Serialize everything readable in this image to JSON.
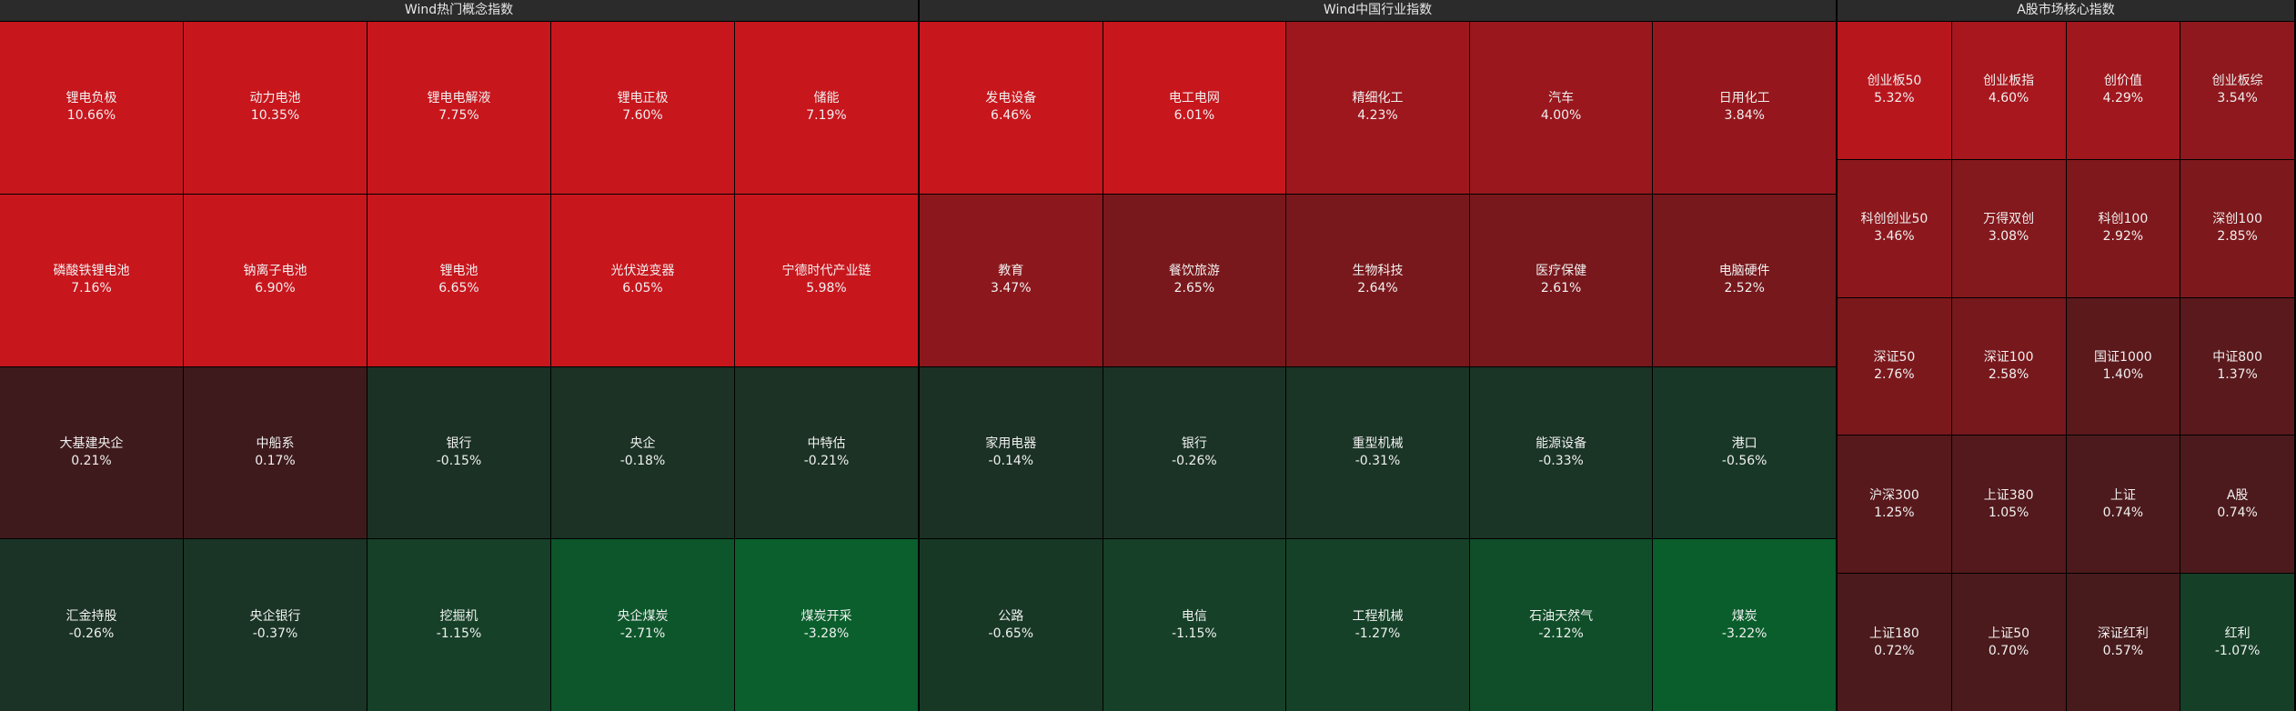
{
  "panels": [
    {
      "title": "Wind热门概念指数",
      "cells": [
        {
          "name": "锂电负极",
          "change": "10.66%"
        },
        {
          "name": "动力电池",
          "change": "10.35%"
        },
        {
          "name": "锂电电解液",
          "change": "7.75%"
        },
        {
          "name": "锂电正极",
          "change": "7.60%"
        },
        {
          "name": "储能",
          "change": "7.19%"
        },
        {
          "name": "磷酸铁锂电池",
          "change": "7.16%"
        },
        {
          "name": "钠离子电池",
          "change": "6.90%"
        },
        {
          "name": "锂电池",
          "change": "6.65%"
        },
        {
          "name": "光伏逆变器",
          "change": "6.05%"
        },
        {
          "name": "宁德时代产业链",
          "change": "5.98%"
        },
        {
          "name": "大基建央企",
          "change": "0.21%"
        },
        {
          "name": "中船系",
          "change": "0.17%"
        },
        {
          "name": "银行",
          "change": "-0.15%"
        },
        {
          "name": "央企",
          "change": "-0.18%"
        },
        {
          "name": "中特估",
          "change": "-0.21%"
        },
        {
          "name": "汇金持股",
          "change": "-0.26%"
        },
        {
          "name": "央企银行",
          "change": "-0.37%"
        },
        {
          "name": "挖掘机",
          "change": "-1.15%"
        },
        {
          "name": "央企煤炭",
          "change": "-2.71%"
        },
        {
          "name": "煤炭开采",
          "change": "-3.28%"
        }
      ]
    },
    {
      "title": "Wind中国行业指数",
      "cells": [
        {
          "name": "发电设备",
          "change": "6.46%"
        },
        {
          "name": "电工电网",
          "change": "6.01%"
        },
        {
          "name": "精细化工",
          "change": "4.23%"
        },
        {
          "name": "汽车",
          "change": "4.00%"
        },
        {
          "name": "日用化工",
          "change": "3.84%"
        },
        {
          "name": "教育",
          "change": "3.47%"
        },
        {
          "name": "餐饮旅游",
          "change": "2.65%"
        },
        {
          "name": "生物科技",
          "change": "2.64%"
        },
        {
          "name": "医疗保健",
          "change": "2.61%"
        },
        {
          "name": "电脑硬件",
          "change": "2.52%"
        },
        {
          "name": "家用电器",
          "change": "-0.14%"
        },
        {
          "name": "银行",
          "change": "-0.26%"
        },
        {
          "name": "重型机械",
          "change": "-0.31%"
        },
        {
          "name": "能源设备",
          "change": "-0.33%"
        },
        {
          "name": "港口",
          "change": "-0.56%"
        },
        {
          "name": "公路",
          "change": "-0.65%"
        },
        {
          "name": "电信",
          "change": "-1.15%"
        },
        {
          "name": "工程机械",
          "change": "-1.27%"
        },
        {
          "name": "石油天然气",
          "change": "-2.12%"
        },
        {
          "name": "煤炭",
          "change": "-3.22%"
        }
      ]
    },
    {
      "title": "A股市场核心指数",
      "cells": [
        {
          "name": "创业板50",
          "change": "5.32%"
        },
        {
          "name": "创业板指",
          "change": "4.60%"
        },
        {
          "name": "创价值",
          "change": "4.29%"
        },
        {
          "name": "创业板综",
          "change": "3.54%"
        },
        {
          "name": "科创创业50",
          "change": "3.46%"
        },
        {
          "name": "万得双创",
          "change": "3.08%"
        },
        {
          "name": "科创100",
          "change": "2.92%"
        },
        {
          "name": "深创100",
          "change": "2.85%"
        },
        {
          "name": "深证50",
          "change": "2.76%"
        },
        {
          "name": "深证100",
          "change": "2.58%"
        },
        {
          "name": "国证1000",
          "change": "1.40%"
        },
        {
          "name": "中证800",
          "change": "1.37%"
        },
        {
          "name": "沪深300",
          "change": "1.25%"
        },
        {
          "name": "上证380",
          "change": "1.05%"
        },
        {
          "name": "上证",
          "change": "0.74%"
        },
        {
          "name": "A股",
          "change": "0.74%"
        },
        {
          "name": "上证180",
          "change": "0.72%"
        },
        {
          "name": "上证50",
          "change": "0.70%"
        },
        {
          "name": "深证红利",
          "change": "0.57%"
        },
        {
          "name": "红利",
          "change": "-1.07%"
        }
      ]
    }
  ]
}
